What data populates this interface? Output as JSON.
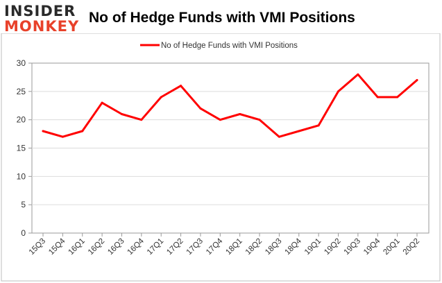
{
  "brand": {
    "logo_top": "INSIDER",
    "logo_bottom": "MONKEY",
    "logo_top_color": "#2a2a2a",
    "logo_bottom_color": "#e8412a"
  },
  "chart_data": {
    "type": "line",
    "title": "No of Hedge Funds with VMI Positions",
    "xlabel": "",
    "ylabel": "",
    "categories": [
      "15Q3",
      "15Q4",
      "16Q1",
      "16Q2",
      "16Q3",
      "16Q4",
      "17Q1",
      "17Q2",
      "17Q3",
      "17Q4",
      "18Q1",
      "18Q2",
      "18Q3",
      "18Q4",
      "19Q1",
      "19Q2",
      "19Q3",
      "19Q4",
      "20Q1",
      "20Q2"
    ],
    "series": [
      {
        "name": "No of Hedge Funds with VMI Positions",
        "color": "#ff0000",
        "values": [
          18,
          17,
          18,
          23,
          21,
          20,
          24,
          26,
          22,
          20,
          21,
          20,
          17,
          18,
          19,
          25,
          28,
          24,
          24,
          27
        ]
      }
    ],
    "ylim": [
      0,
      30
    ],
    "yticks": [
      0,
      5,
      10,
      15,
      20,
      25,
      30
    ],
    "grid": true,
    "legend": "top-center"
  }
}
